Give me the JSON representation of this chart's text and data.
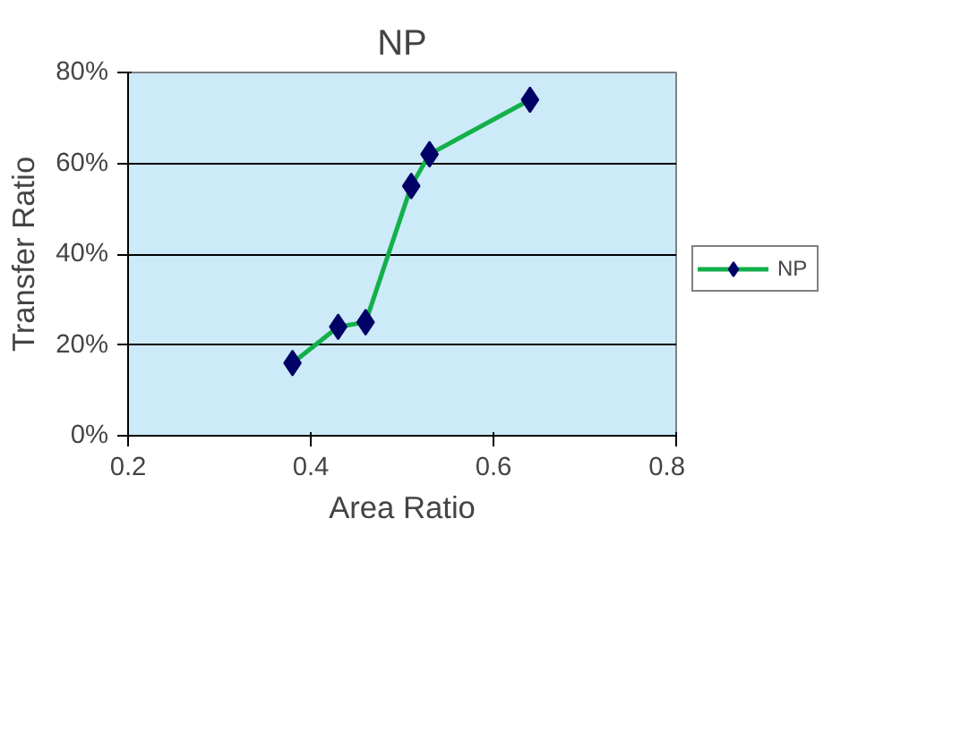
{
  "chart_data": {
    "type": "line",
    "title": "NP",
    "xlabel": "Area Ratio",
    "ylabel": "Transfer Ratio",
    "x": [
      0.38,
      0.43,
      0.46,
      0.51,
      0.53,
      0.64
    ],
    "series": [
      {
        "name": "NP",
        "color": "#13b04a",
        "values": [
          0.16,
          0.24,
          0.25,
          0.55,
          0.62,
          0.74
        ]
      }
    ],
    "xlim": [
      0.2,
      0.8
    ],
    "xticks": [
      0.2,
      0.4,
      0.6,
      0.8
    ],
    "ylim": [
      0,
      0.8
    ],
    "yticks": [
      {
        "value": 0,
        "label": "0%"
      },
      {
        "value": 0.2,
        "label": "20%"
      },
      {
        "value": 0.4,
        "label": "40%"
      },
      {
        "value": 0.6,
        "label": "60%"
      },
      {
        "value": 0.8,
        "label": "80%"
      }
    ],
    "grid": "y",
    "legend": "right",
    "marker": "diamond",
    "line_style": "solid"
  }
}
